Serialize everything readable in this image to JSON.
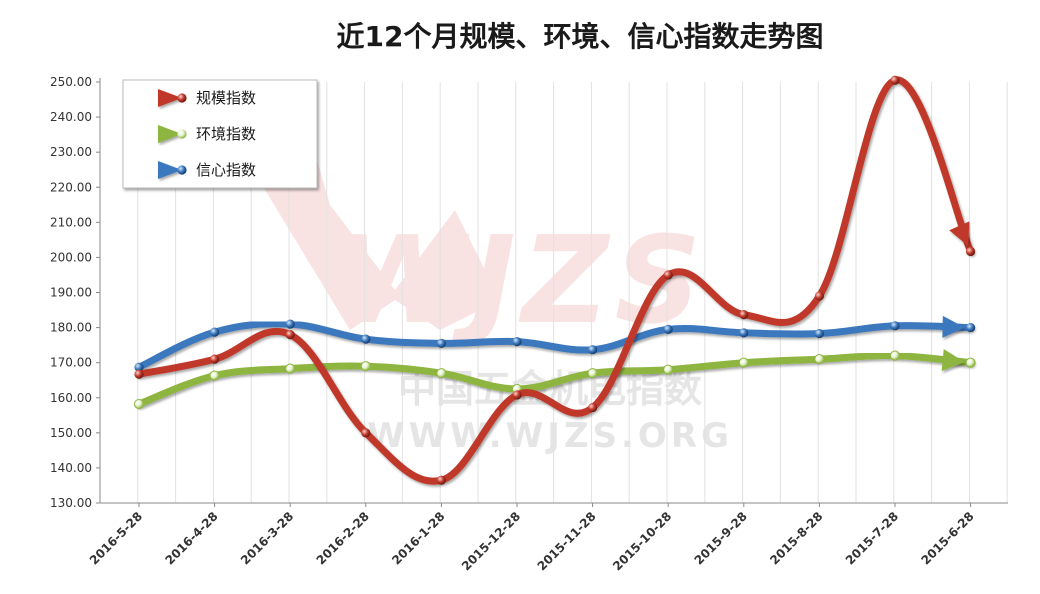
{
  "chart_data": {
    "type": "line",
    "title": "近12个月规模、环境、信心指数走势图",
    "categories": [
      "2016-5-28",
      "2016-4-28",
      "2016-3-28",
      "2016-2-28",
      "2016-1-28",
      "2015-12-28",
      "2015-11-28",
      "2015-10-28",
      "2015-9-28",
      "2015-8-28",
      "2015-7-28",
      "2015-6-28"
    ],
    "y_ticks": [
      "130.00",
      "140.00",
      "150.00",
      "160.00",
      "170.00",
      "180.00",
      "190.00",
      "200.00",
      "210.00",
      "220.00",
      "230.00",
      "240.00",
      "250.00"
    ],
    "ylim": [
      130,
      250
    ],
    "grid": "vertical",
    "legend_position": "top-left",
    "series": [
      {
        "name": "规模指数",
        "color": "#c0392b",
        "values": [
          166.7,
          171.0,
          178.0,
          150.0,
          136.5,
          160.8,
          157.2,
          195.0,
          183.7,
          189.0,
          250.5,
          201.7
        ]
      },
      {
        "name": "环境指数",
        "color": "#8db53f",
        "values": [
          158.2,
          166.3,
          168.3,
          169.0,
          167.0,
          162.5,
          167.0,
          168.0,
          170.0,
          171.0,
          172.0,
          170.0
        ]
      },
      {
        "name": "信心指数",
        "color": "#3b78bd",
        "values": [
          168.7,
          178.7,
          181.0,
          176.7,
          175.5,
          176.0,
          173.7,
          179.5,
          178.5,
          178.3,
          180.5,
          180.0
        ]
      }
    ]
  },
  "watermark": {
    "logo_text": "WJZS",
    "cn_text": "中国五金机电指数",
    "url_text": "WWW.WJZS.ORG"
  }
}
